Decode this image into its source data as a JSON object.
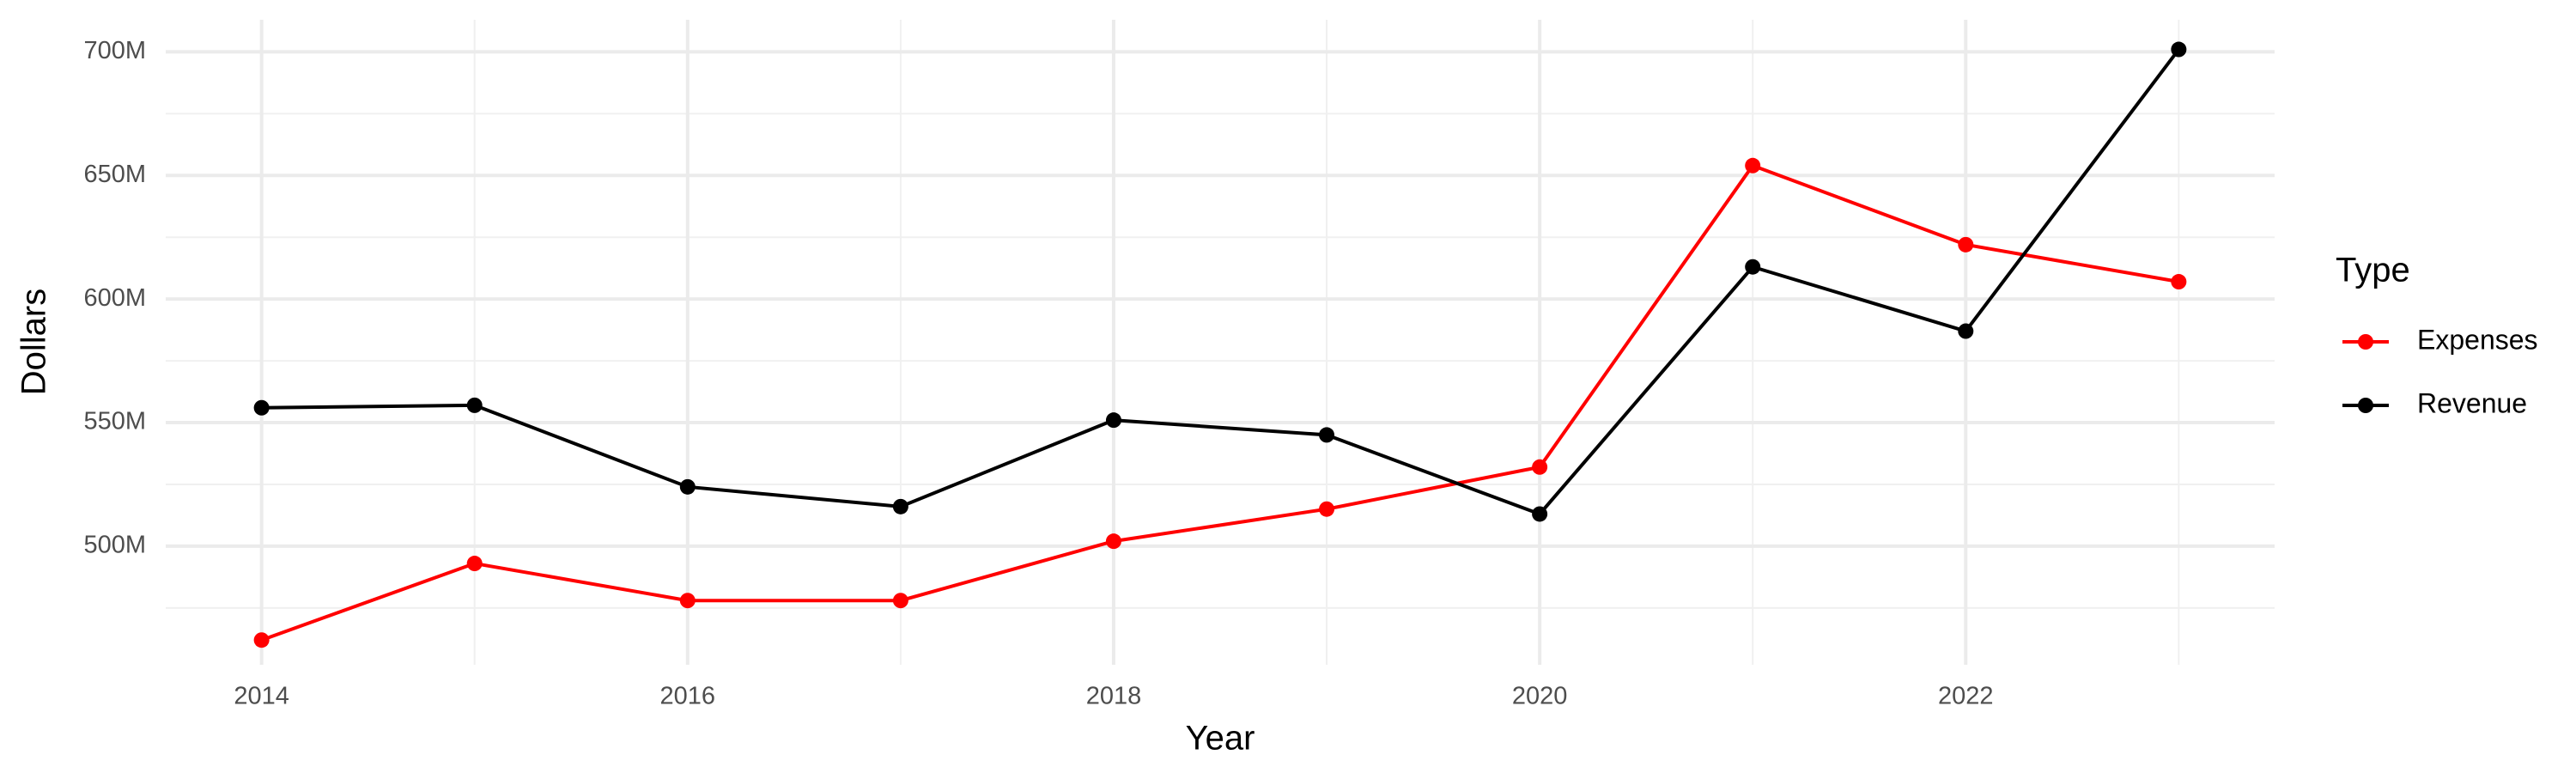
{
  "chart_data": {
    "type": "line",
    "x_label": "Year",
    "y_label": "Dollars",
    "x": [
      2014,
      2015,
      2016,
      2017,
      2018,
      2019,
      2020,
      2021,
      2022,
      2023
    ],
    "series": [
      {
        "name": "Expenses",
        "color": "#ff0000",
        "values": [
          462000000,
          493000000,
          478000000,
          478000000,
          502000000,
          515000000,
          532000000,
          654000000,
          622000000,
          607000000
        ]
      },
      {
        "name": "Revenue",
        "color": "#000000",
        "values": [
          556000000,
          557000000,
          524000000,
          516000000,
          551000000,
          545000000,
          513000000,
          613000000,
          587000000,
          701000000
        ]
      }
    ],
    "xlim": [
      2013.55,
      2023.45
    ],
    "xticks": [
      2014,
      2016,
      2018,
      2020,
      2022
    ],
    "ylim": [
      452000000,
      713000000
    ],
    "yticks": [
      {
        "value": 500000000,
        "label": "500M"
      },
      {
        "value": 550000000,
        "label": "550M"
      },
      {
        "value": 600000000,
        "label": "600M"
      },
      {
        "value": 650000000,
        "label": "650M"
      },
      {
        "value": 700000000,
        "label": "700M"
      }
    ],
    "grid": true,
    "legend_title": "Type",
    "legend_position": "right"
  }
}
